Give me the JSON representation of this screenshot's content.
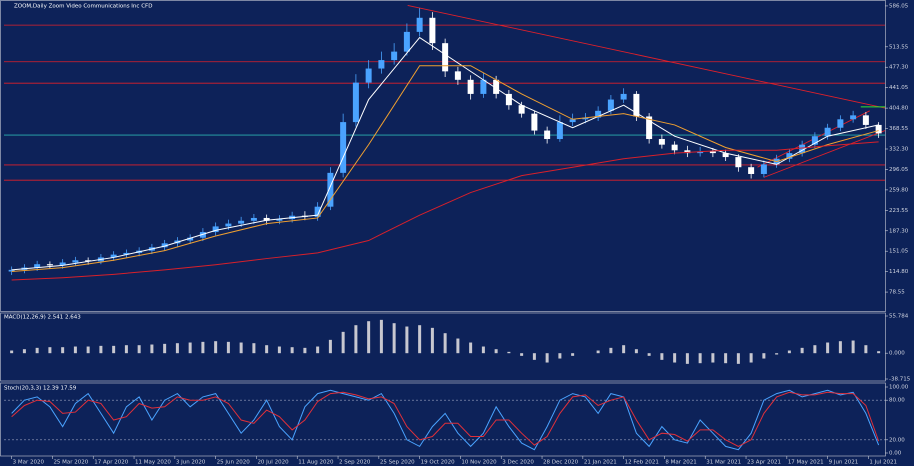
{
  "chart_data": [
    {
      "type": "candlestick",
      "title": "ZOOM,Daily  Zoom Video Communications Inc CFD",
      "up_color": "#4aa3ff",
      "down_color": "#ffffff",
      "xlim": [
        -0.6,
        68.5
      ],
      "ylim": [
        45,
        593
      ],
      "xticks": [
        {
          "value": 0,
          "label": "3 Mar 2020"
        },
        {
          "value": 3.2,
          "label": "25 Mar 2020"
        },
        {
          "value": 6.4,
          "label": "17 Apr 2020"
        },
        {
          "value": 9.6,
          "label": "11 May 2020"
        },
        {
          "value": 12.8,
          "label": "3 Jun 2020"
        },
        {
          "value": 16,
          "label": "25 Jun 2020"
        },
        {
          "value": 19.2,
          "label": "20 Jul 2020"
        },
        {
          "value": 22.4,
          "label": "11 Aug 2020"
        },
        {
          "value": 25.6,
          "label": "2 Sep 2020"
        },
        {
          "value": 28.8,
          "label": "25 Sep 2020"
        },
        {
          "value": 32,
          "label": "19 Oct 2020"
        },
        {
          "value": 35.2,
          "label": "10 Nov 2020"
        },
        {
          "value": 38.4,
          "label": "3 Dec 2020"
        },
        {
          "value": 41.6,
          "label": "28 Dec 2020"
        },
        {
          "value": 44.8,
          "label": "21 Jan 2021"
        },
        {
          "value": 48,
          "label": "12 Feb 2021"
        },
        {
          "value": 51.2,
          "label": "8 Mar 2021"
        },
        {
          "value": 54.4,
          "label": "31 Mar 2021"
        },
        {
          "value": 57.6,
          "label": "23 Apr 2021"
        },
        {
          "value": 60.8,
          "label": "17 May 2021"
        },
        {
          "value": 64,
          "label": "9 Jun 2021"
        },
        {
          "value": 67.2,
          "label": "1 Jul 2021"
        }
      ],
      "yticks": [
        586.05,
        513.55,
        {
          "value": 477.3,
          "label": "477.30"
        },
        441.05,
        {
          "value": 404.8,
          "label": "404.80"
        },
        368.55,
        {
          "value": 332.3,
          "label": "332.30"
        },
        296.05,
        {
          "value": 259.8,
          "label": "259.80"
        },
        223.55,
        {
          "value": 187.3,
          "label": "187.30"
        },
        151.05,
        {
          "value": 114.8,
          "label": "114.80"
        },
        78.55
      ],
      "open": [
        115,
        118,
        122,
        128,
        126,
        131,
        135,
        133,
        140,
        145,
        148,
        152,
        158,
        165,
        170,
        175,
        185,
        195,
        200,
        205,
        210,
        205,
        208,
        214,
        212,
        230,
        290,
        380,
        450,
        475,
        490,
        505,
        540,
        565,
        520,
        470,
        455,
        430,
        455,
        430,
        410,
        395,
        365,
        350,
        380,
        385,
        388,
        400,
        420,
        430,
        390,
        350,
        340,
        330,
        325,
        328,
        325,
        318,
        300,
        288,
        305,
        315,
        325,
        340,
        355,
        370,
        385,
        392,
        375
      ],
      "high": [
        124,
        128,
        134,
        133,
        137,
        141,
        140,
        146,
        151,
        154,
        158,
        164,
        171,
        176,
        181,
        192,
        202,
        207,
        212,
        217,
        216,
        215,
        221,
        222,
        238,
        300,
        395,
        465,
        490,
        505,
        520,
        555,
        582,
        575,
        528,
        478,
        463,
        468,
        462,
        437,
        416,
        400,
        372,
        392,
        395,
        396,
        408,
        428,
        440,
        435,
        396,
        358,
        346,
        338,
        336,
        334,
        331,
        323,
        306,
        312,
        322,
        332,
        347,
        362,
        377,
        392,
        400,
        398,
        380
      ],
      "low": [
        109,
        112,
        116,
        120,
        120,
        125,
        127,
        128,
        134,
        139,
        142,
        146,
        152,
        159,
        164,
        169,
        179,
        189,
        194,
        199,
        198,
        199,
        202,
        206,
        205,
        224,
        282,
        372,
        440,
        466,
        482,
        498,
        532,
        508,
        460,
        446,
        420,
        423,
        422,
        402,
        388,
        358,
        342,
        345,
        373,
        378,
        382,
        394,
        414,
        382,
        342,
        333,
        323,
        318,
        319,
        318,
        311,
        292,
        280,
        282,
        299,
        309,
        319,
        334,
        349,
        364,
        379,
        368,
        352
      ],
      "close": [
        118,
        122,
        128,
        126,
        131,
        135,
        133,
        140,
        145,
        148,
        152,
        158,
        165,
        170,
        175,
        185,
        195,
        200,
        205,
        210,
        205,
        208,
        214,
        212,
        230,
        290,
        380,
        450,
        475,
        490,
        505,
        540,
        565,
        520,
        470,
        455,
        430,
        455,
        430,
        410,
        395,
        365,
        350,
        380,
        385,
        388,
        400,
        420,
        430,
        390,
        350,
        340,
        330,
        325,
        328,
        325,
        318,
        300,
        288,
        305,
        315,
        325,
        340,
        355,
        370,
        385,
        392,
        375,
        360
      ],
      "series": [
        {
          "color": "#ffffff",
          "x": [
            0,
            4,
            8,
            12,
            16,
            20,
            24,
            28,
            32,
            36,
            40,
            44,
            48,
            52,
            56,
            60,
            64,
            68
          ],
          "values": [
            118,
            126,
            140,
            160,
            188,
            206,
            215,
            420,
            530,
            470,
            410,
            370,
            410,
            355,
            325,
            305,
            355,
            375
          ]
        },
        {
          "color": "#f0a030",
          "x": [
            0,
            4,
            8,
            12,
            16,
            20,
            24,
            28,
            32,
            36,
            40,
            44,
            48,
            52,
            56,
            60,
            64,
            68
          ],
          "values": [
            115,
            122,
            135,
            152,
            178,
            200,
            210,
            340,
            480,
            480,
            430,
            385,
            395,
            375,
            335,
            310,
            340,
            365
          ]
        },
        {
          "color": "#d8202a",
          "x": [
            0,
            4,
            8,
            12,
            16,
            20,
            24,
            28,
            32,
            36,
            40,
            44,
            48,
            52,
            56,
            60,
            64,
            68
          ],
          "values": [
            100,
            104,
            110,
            118,
            127,
            138,
            148,
            170,
            215,
            255,
            285,
            300,
            315,
            325,
            330,
            330,
            338,
            345
          ]
        }
      ],
      "hlines": [
        {
          "value": 552,
          "color": "#e0202a"
        },
        {
          "value": 487,
          "color": "#e0202a"
        },
        {
          "value": 449,
          "color": "#e0202a"
        },
        {
          "value": 304,
          "color": "#e0202a"
        },
        {
          "value": 277,
          "color": "#e0202a"
        },
        {
          "value": 357,
          "color": "#2bb0b0"
        }
      ],
      "trendlines": [
        {
          "color": "#e0202a",
          "x": [
            31.06,
            68.5
          ],
          "y": [
            587,
            405
          ]
        },
        {
          "color": "#2ee82e",
          "x": [
            66.6,
            68.5
          ],
          "y": [
            407,
            407
          ]
        },
        {
          "color": "#e0202a",
          "x": [
            58.5,
            67.3
          ],
          "y": [
            300,
            400
          ]
        },
        {
          "color": "#e0202a",
          "x": [
            59,
            68.5
          ],
          "y": [
            282,
            365
          ]
        }
      ]
    },
    {
      "type": "bar",
      "title": "MACD(12,26,9) 2.541 2.643",
      "color": "#c8c8d0",
      "ylim": [
        -38.715,
        55.784
      ],
      "yticks": [
        55.784,
        {
          "value": 0,
          "label": "0.000"
        },
        -38.715
      ],
      "values": [
        4,
        6,
        8,
        9,
        9,
        10,
        10,
        11,
        11,
        12,
        12,
        13,
        14,
        15,
        16,
        17,
        18,
        17,
        16,
        15,
        12,
        10,
        9,
        8,
        10,
        20,
        32,
        42,
        48,
        50,
        45,
        40,
        42,
        38,
        30,
        22,
        16,
        10,
        6,
        2,
        -4,
        -10,
        -14,
        -8,
        -4,
        0,
        4,
        8,
        12,
        6,
        -4,
        -10,
        -14,
        -16,
        -15,
        -14,
        -15,
        -16,
        -14,
        -8,
        -2,
        4,
        8,
        12,
        16,
        18,
        19,
        12,
        3
      ]
    },
    {
      "type": "line",
      "title": "Stoch(20,3,3) 12.39 17.59",
      "ylim": [
        0,
        100
      ],
      "yticks": [
        {
          "value": 100,
          "label": "100.00"
        },
        {
          "value": 80,
          "label": "80.00"
        },
        {
          "value": 20,
          "label": "20.00"
        },
        {
          "value": 0,
          "label": "0.00"
        }
      ],
      "levels": [
        80,
        20
      ],
      "series": [
        {
          "color": "#4aa3ff",
          "values": [
            60,
            80,
            85,
            70,
            40,
            75,
            90,
            60,
            30,
            70,
            85,
            50,
            80,
            90,
            70,
            85,
            90,
            60,
            30,
            50,
            80,
            40,
            20,
            70,
            90,
            95,
            90,
            85,
            80,
            90,
            60,
            20,
            10,
            40,
            60,
            30,
            10,
            30,
            70,
            40,
            15,
            5,
            40,
            80,
            90,
            85,
            60,
            90,
            85,
            30,
            10,
            40,
            20,
            15,
            50,
            30,
            10,
            5,
            30,
            80,
            90,
            95,
            85,
            90,
            95,
            88,
            92,
            60,
            12
          ]
        },
        {
          "color": "#e0303a",
          "values": [
            55,
            72,
            80,
            78,
            60,
            62,
            80,
            75,
            50,
            55,
            75,
            68,
            70,
            85,
            80,
            80,
            85,
            75,
            50,
            45,
            65,
            55,
            35,
            50,
            78,
            90,
            92,
            88,
            82,
            85,
            75,
            40,
            20,
            25,
            45,
            45,
            25,
            25,
            50,
            50,
            30,
            12,
            25,
            60,
            85,
            88,
            72,
            80,
            85,
            50,
            20,
            30,
            28,
            18,
            35,
            35,
            20,
            10,
            20,
            60,
            85,
            92,
            88,
            88,
            92,
            90,
            90,
            72,
            18
          ]
        }
      ]
    }
  ]
}
